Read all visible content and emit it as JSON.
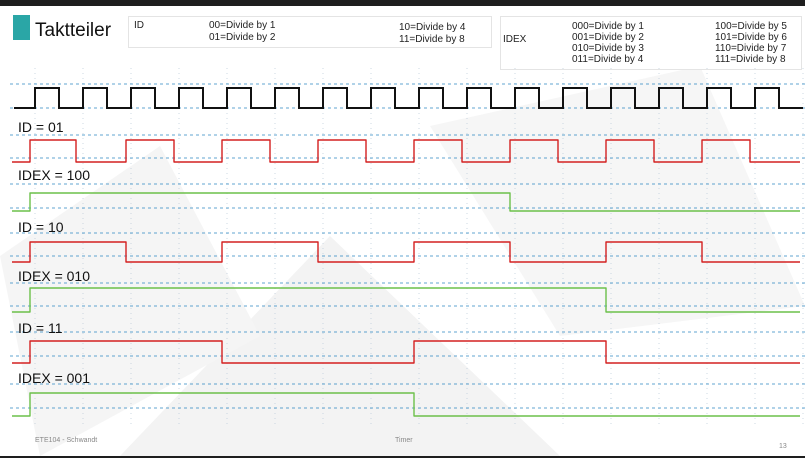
{
  "slide": {
    "title": "Taktteiler",
    "id_table": {
      "label": "ID",
      "entries": [
        "00=Divide by 1",
        "01=Divide by 2",
        "10=Divide by 4",
        "11=Divide by 8"
      ]
    },
    "idex_table": {
      "label": "IDEX",
      "entries": [
        "000=Divide by 1",
        "001=Divide by 2",
        "010=Divide by 3",
        "011=Divide by 4",
        "100=Divide by 5",
        "101=Divide by 6",
        "110=Divide by 7",
        "111=Divide by 8"
      ]
    },
    "signals": [
      {
        "label": "ID = 01",
        "color": "#d42020"
      },
      {
        "label": "IDEX = 100",
        "color": "#6cc04a"
      },
      {
        "label": "ID = 10",
        "color": "#d42020"
      },
      {
        "label": "IDEX = 010",
        "color": "#6cc04a"
      },
      {
        "label": "ID = 11",
        "color": "#d42020"
      },
      {
        "label": "IDEX = 001",
        "color": "#6cc04a"
      }
    ],
    "clock_color": "#111111",
    "grid_color": "#2e86c1",
    "footer": {
      "left": "ETE104 - Schwandt",
      "center": "Timer",
      "page": "13"
    }
  }
}
